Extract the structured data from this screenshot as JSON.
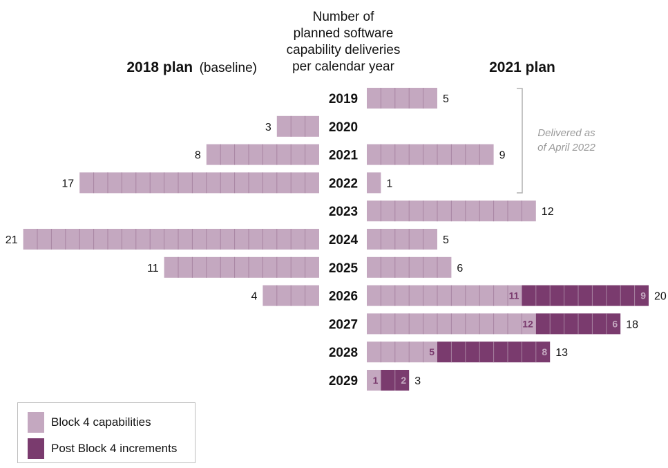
{
  "chart_data": {
    "type": "bar",
    "title_lines": [
      "Number of",
      "planned software",
      "capability deliveries",
      "per calendar year"
    ],
    "left_header": {
      "bold": "2018 plan",
      "normal": "(baseline)"
    },
    "right_header": "2021 plan",
    "categories": [
      "2019",
      "2020",
      "2021",
      "2022",
      "2023",
      "2024",
      "2025",
      "2026",
      "2027",
      "2028",
      "2029"
    ],
    "plan_2018": [
      0,
      3,
      8,
      17,
      0,
      21,
      11,
      4,
      0,
      0,
      0
    ],
    "plan_2021": {
      "block4": [
        5,
        0,
        9,
        1,
        12,
        5,
        6,
        11,
        12,
        5,
        1
      ],
      "post_block4": [
        0,
        0,
        0,
        0,
        0,
        0,
        0,
        9,
        6,
        8,
        2
      ],
      "totals": [
        5,
        0,
        9,
        1,
        12,
        5,
        6,
        20,
        18,
        13,
        3
      ]
    },
    "annotation": {
      "lines": [
        "Delivered as",
        "of April 2022"
      ],
      "years": [
        "2019",
        "2022"
      ]
    },
    "colors": {
      "block4": "#c4a8c0",
      "post_block4": "#7a3b6e",
      "cell_line": "#a884a2",
      "bracket": "#b0b0b0"
    }
  },
  "legend": [
    {
      "label": "Block 4 capabilities",
      "color": "#c4a8c0"
    },
    {
      "label": "Post Block 4 increments",
      "color": "#7a3b6e"
    }
  ]
}
